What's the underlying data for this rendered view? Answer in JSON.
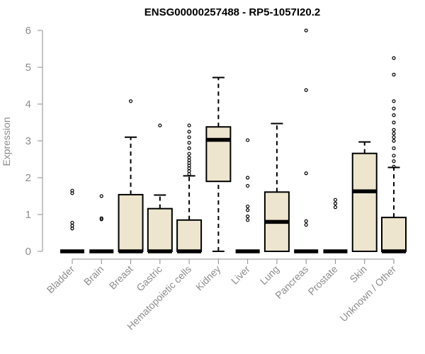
{
  "chart_data": {
    "type": "boxplot",
    "title": "ENSG00000257488 - RP5-1057I20.2",
    "xlabel": "",
    "ylabel": "Expression",
    "ylim": [
      0,
      6
    ],
    "yticks": [
      0,
      1,
      2,
      3,
      4,
      5,
      6
    ],
    "box_fill": "#ede5cd",
    "stroke_color": "#000000",
    "axis_color": "#8c8c8c",
    "categories": [
      "Bladder",
      "Brain",
      "Breast",
      "Gastric",
      "Hematopoietic cells",
      "Kidney",
      "Liver",
      "Lung",
      "Pancreas",
      "Prostate",
      "Skin",
      "Unknown / Other"
    ],
    "series": [
      {
        "name": "Bladder",
        "min": 0,
        "q1": 0,
        "median": 0,
        "q3": 0,
        "max": 0,
        "outliers": [
          0.62,
          0.7,
          0.78,
          1.58,
          1.65
        ]
      },
      {
        "name": "Brain",
        "min": 0,
        "q1": 0,
        "median": 0,
        "q3": 0,
        "max": 0,
        "outliers": [
          0.87,
          0.9,
          1.5
        ]
      },
      {
        "name": "Breast",
        "min": 0,
        "q1": 0,
        "median": 0,
        "q3": 1.54,
        "max": 3.1,
        "outliers": [
          4.08
        ]
      },
      {
        "name": "Gastric",
        "min": 0,
        "q1": 0,
        "median": 0,
        "q3": 1.16,
        "max": 1.53,
        "outliers": [
          3.42
        ]
      },
      {
        "name": "Hematopoietic cells",
        "min": 0,
        "q1": 0,
        "median": 0,
        "q3": 0.85,
        "max": 2.05,
        "outliers": [
          2.1,
          2.18,
          2.26,
          2.33,
          2.4,
          2.47,
          2.55,
          2.65,
          2.8,
          2.95,
          3.1,
          3.25,
          3.42
        ]
      },
      {
        "name": "Kidney",
        "min": 0,
        "q1": 1.9,
        "median": 3.03,
        "q3": 3.38,
        "max": 4.72,
        "outliers": []
      },
      {
        "name": "Liver",
        "min": 0,
        "q1": 0,
        "median": 0,
        "q3": 0,
        "max": 0,
        "outliers": [
          0.85,
          0.95,
          1.12,
          1.22,
          1.78,
          2.0,
          3.02
        ]
      },
      {
        "name": "Lung",
        "min": 0,
        "q1": 0,
        "median": 0.8,
        "q3": 1.61,
        "max": 3.47,
        "outliers": []
      },
      {
        "name": "Pancreas",
        "min": 0,
        "q1": 0,
        "median": 0,
        "q3": 0,
        "max": 0,
        "outliers": [
          0.72,
          0.82,
          2.12,
          4.38,
          6.0
        ]
      },
      {
        "name": "Prostate",
        "min": 0,
        "q1": 0,
        "median": 0,
        "q3": 0,
        "max": 0,
        "outliers": [
          1.2,
          1.3,
          1.4
        ]
      },
      {
        "name": "Skin",
        "min": 0,
        "q1": 0,
        "median": 1.63,
        "q3": 2.66,
        "max": 2.97,
        "outliers": []
      },
      {
        "name": "Unknown / Other",
        "min": 0,
        "q1": 0,
        "median": 0,
        "q3": 0.92,
        "max": 2.28,
        "outliers": [
          2.3,
          2.45,
          2.6,
          2.8,
          3.0,
          3.1,
          3.2,
          3.3,
          3.5,
          3.7,
          3.88,
          4.08,
          4.8,
          5.25
        ]
      }
    ]
  }
}
